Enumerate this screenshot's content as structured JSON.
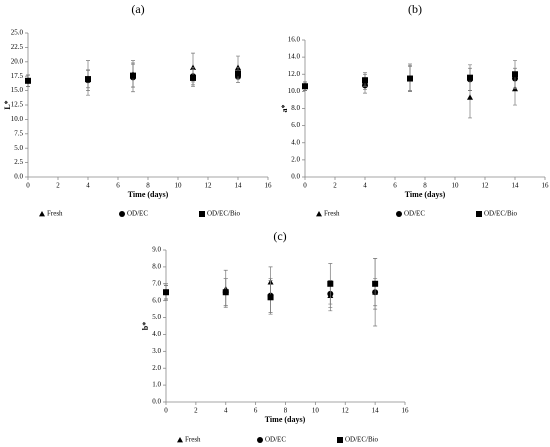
{
  "chart_data": [
    {
      "type": "scatter",
      "title": "(a)",
      "x_label": "Time (days)",
      "y_label": "L*",
      "x": [
        0,
        4,
        7,
        11,
        14
      ],
      "xlim": [
        0,
        16
      ],
      "xticks": [
        0,
        2,
        4,
        6,
        8,
        10,
        12,
        14,
        16
      ],
      "ylim": [
        0,
        25
      ],
      "yticks": [
        {
          "value": 0,
          "label": "0.0"
        },
        {
          "value": 2.5,
          "label": "2.5"
        },
        {
          "value": 5,
          "label": "5.0"
        },
        {
          "value": 7.5,
          "label": "7.5"
        },
        {
          "value": 10,
          "label": "10.0"
        },
        {
          "value": 12.5,
          "label": "12.5"
        },
        {
          "value": 15,
          "label": "15.0"
        },
        {
          "value": 17.5,
          "label": "17.5"
        },
        {
          "value": 20,
          "label": "20.0"
        },
        {
          "value": 22.5,
          "label": "22.5"
        },
        {
          "value": 25,
          "label": "25.0"
        }
      ],
      "series": [
        {
          "name": "Fresh",
          "marker": "triangle",
          "color": "#000000",
          "values": [
            16.7,
            17.2,
            17.9,
            19.0,
            19.0
          ],
          "errors": [
            1.0,
            3.0,
            2.3,
            2.5,
            2.0
          ]
        },
        {
          "name": "OD/EC",
          "marker": "circle",
          "color": "#000000",
          "values": [
            16.7,
            16.8,
            17.3,
            17.5,
            17.4
          ],
          "errors": [
            1.0,
            1.8,
            2.5,
            1.5,
            1.0
          ]
        },
        {
          "name": "OD/EC/Bio",
          "marker": "square",
          "color": "#000000",
          "values": [
            16.7,
            17.0,
            17.6,
            17.2,
            18.0
          ],
          "errors": [
            1.0,
            1.5,
            2.0,
            1.5,
            1.0
          ]
        }
      ]
    },
    {
      "type": "scatter",
      "title": "(b)",
      "x_label": "Time (days)",
      "y_label": "a*",
      "x": [
        0,
        4,
        7,
        11,
        14
      ],
      "xlim": [
        0,
        16
      ],
      "xticks": [
        0,
        2,
        4,
        6,
        8,
        10,
        12,
        14,
        16
      ],
      "ylim": [
        0,
        16
      ],
      "yticks": [
        {
          "value": 0,
          "label": "0.0"
        },
        {
          "value": 2,
          "label": "2.0"
        },
        {
          "value": 4,
          "label": "4.0"
        },
        {
          "value": 6,
          "label": "6.0"
        },
        {
          "value": 8,
          "label": "8.0"
        },
        {
          "value": 10,
          "label": "10.0"
        },
        {
          "value": 12,
          "label": "12.0"
        },
        {
          "value": 14,
          "label": "14.0"
        },
        {
          "value": 16,
          "label": "16.0"
        }
      ],
      "series": [
        {
          "name": "Fresh",
          "marker": "triangle",
          "color": "#000000",
          "values": [
            10.6,
            11.2,
            11.6,
            9.3,
            10.3
          ],
          "errors": [
            0.5,
            1.0,
            1.6,
            2.4,
            1.9
          ]
        },
        {
          "name": "OD/EC",
          "marker": "circle",
          "color": "#000000",
          "values": [
            10.6,
            10.7,
            11.5,
            11.4,
            11.5
          ],
          "errors": [
            0.5,
            0.9,
            1.5,
            1.3,
            1.2
          ]
        },
        {
          "name": "OD/EC/Bio",
          "marker": "square",
          "color": "#000000",
          "values": [
            10.6,
            11.3,
            11.5,
            11.6,
            12.0
          ],
          "errors": [
            0.5,
            0.7,
            1.4,
            1.5,
            1.6
          ]
        }
      ]
    },
    {
      "type": "scatter",
      "title": "(c)",
      "x_label": "Time (days)",
      "y_label": "b*",
      "x": [
        0,
        4,
        7,
        11,
        14
      ],
      "xlim": [
        0,
        16
      ],
      "xticks": [
        0,
        2,
        4,
        6,
        8,
        10,
        12,
        14,
        16
      ],
      "ylim": [
        0,
        9
      ],
      "yticks": [
        {
          "value": 0,
          "label": "0.0"
        },
        {
          "value": 1,
          "label": "1.0"
        },
        {
          "value": 2,
          "label": "2.0"
        },
        {
          "value": 3,
          "label": "3.0"
        },
        {
          "value": 4,
          "label": "4.0"
        },
        {
          "value": 5,
          "label": "5.0"
        },
        {
          "value": 6,
          "label": "6.0"
        },
        {
          "value": 7,
          "label": "7.0"
        },
        {
          "value": 8,
          "label": "8.0"
        },
        {
          "value": 9,
          "label": "9.0"
        }
      ],
      "series": [
        {
          "name": "Fresh",
          "marker": "triangle",
          "color": "#000000",
          "values": [
            6.5,
            6.7,
            7.1,
            6.3,
            6.5
          ],
          "errors": [
            0.5,
            1.1,
            0.9,
            0.9,
            2.0
          ]
        },
        {
          "name": "OD/EC",
          "marker": "circle",
          "color": "#000000",
          "values": [
            6.5,
            6.5,
            6.3,
            6.4,
            6.5
          ],
          "errors": [
            0.4,
            0.8,
            1.0,
            0.8,
            0.8
          ]
        },
        {
          "name": "OD/EC/Bio",
          "marker": "square",
          "color": "#000000",
          "values": [
            6.5,
            6.5,
            6.2,
            7.0,
            7.0
          ],
          "errors": [
            0.4,
            0.8,
            1.0,
            1.2,
            1.5
          ]
        }
      ]
    }
  ]
}
